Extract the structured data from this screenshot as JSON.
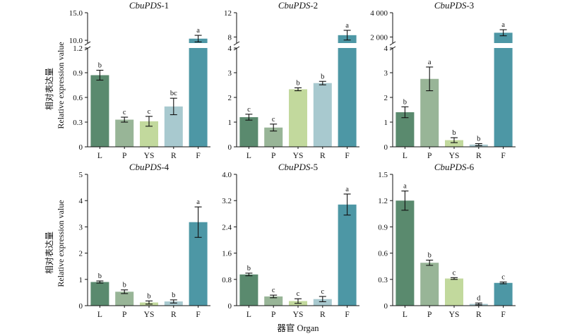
{
  "figure": {
    "y_axis_label_cn": "相对表达量",
    "y_axis_label_en": "Relative expression value",
    "x_axis_label": "器官 Organ"
  },
  "colors": {
    "L": "#5a8a6e",
    "P": "#98b597",
    "YS": "#c2d99d",
    "R": "#a8c9cf",
    "F": "#4d97a5"
  },
  "chart_data": [
    {
      "type": "bar",
      "gene": "CbuPDS",
      "number": "-1",
      "categories": [
        "L",
        "P",
        "YS",
        "R",
        "F"
      ],
      "values": [
        0.87,
        0.33,
        0.31,
        0.49,
        10.3
      ],
      "errors": [
        0.06,
        0.03,
        0.06,
        0.1,
        0.6
      ],
      "letters": [
        "b",
        "c",
        "c",
        "bc",
        "a"
      ],
      "ylim": [
        0,
        15
      ],
      "axis_break": {
        "lower": [
          0,
          1.2
        ],
        "upper": [
          9.5,
          15
        ]
      },
      "yticks_lower": [
        "0",
        "0.3",
        "0.6",
        "0.9",
        "1.2"
      ],
      "yticks_upper": [
        "10.0",
        "15.0"
      ]
    },
    {
      "type": "bar",
      "gene": "CbuPDS",
      "number": "-2",
      "categories": [
        "L",
        "P",
        "YS",
        "R",
        "F"
      ],
      "values": [
        1.2,
        0.78,
        2.33,
        2.58,
        8.3
      ],
      "errors": [
        0.12,
        0.14,
        0.06,
        0.07,
        0.8
      ],
      "letters": [
        "c",
        "c",
        "b",
        "b",
        "a"
      ],
      "ylim": [
        0,
        12
      ],
      "axis_break": {
        "lower": [
          0,
          4
        ],
        "upper": [
          7,
          12
        ]
      },
      "yticks_lower": [
        "0",
        "1",
        "2",
        "3",
        "4"
      ],
      "yticks_upper": [
        "8",
        "12"
      ]
    },
    {
      "type": "bar",
      "gene": "CbuPDS",
      "number": "-3",
      "categories": [
        "L",
        "P",
        "YS",
        "R",
        "F"
      ],
      "values": [
        1.4,
        2.75,
        0.27,
        0.09,
        2350
      ],
      "errors": [
        0.22,
        0.48,
        0.1,
        0.04,
        250
      ],
      "letters": [
        "b",
        "a",
        "b",
        "b",
        "a"
      ],
      "ylim": [
        0,
        4000
      ],
      "axis_break": {
        "lower": [
          0,
          4
        ],
        "upper": [
          1500,
          4000
        ]
      },
      "yticks_lower": [
        "0",
        "1",
        "2",
        "3",
        "4"
      ],
      "yticks_upper": [
        "2 000",
        "4 000"
      ]
    },
    {
      "type": "bar",
      "gene": "CbuPDS",
      "number": "-4",
      "categories": [
        "L",
        "P",
        "YS",
        "R",
        "F"
      ],
      "values": [
        0.9,
        0.53,
        0.12,
        0.16,
        3.18
      ],
      "errors": [
        0.04,
        0.07,
        0.06,
        0.06,
        0.58
      ],
      "letters": [
        "b",
        "b",
        "b",
        "b",
        "a"
      ],
      "ylim": [
        0,
        5
      ],
      "yticks": [
        "0",
        "1",
        "2",
        "3",
        "4",
        "5"
      ]
    },
    {
      "type": "bar",
      "gene": "CbuPDS",
      "number": "-5",
      "categories": [
        "L",
        "P",
        "YS",
        "R",
        "F"
      ],
      "values": [
        0.95,
        0.28,
        0.14,
        0.2,
        3.08
      ],
      "errors": [
        0.04,
        0.04,
        0.07,
        0.08,
        0.32
      ],
      "letters": [
        "b",
        "c",
        "c",
        "c",
        "a"
      ],
      "ylim": [
        0,
        4
      ],
      "yticks": [
        "0",
        "0.8",
        "1.6",
        "2.4",
        "3.2",
        "4.0"
      ]
    },
    {
      "type": "bar",
      "gene": "CbuPDS",
      "number": "-6",
      "categories": [
        "L",
        "P",
        "YS",
        "R",
        "F"
      ],
      "values": [
        1.2,
        0.49,
        0.31,
        0.02,
        0.26
      ],
      "errors": [
        0.11,
        0.03,
        0.01,
        0.01,
        0.01
      ],
      "letters": [
        "a",
        "b",
        "c",
        "d",
        "c"
      ],
      "ylim": [
        0,
        1.5
      ],
      "yticks": [
        "0",
        "0.3",
        "0.6",
        "0.9",
        "1.2",
        "1.5"
      ]
    }
  ]
}
